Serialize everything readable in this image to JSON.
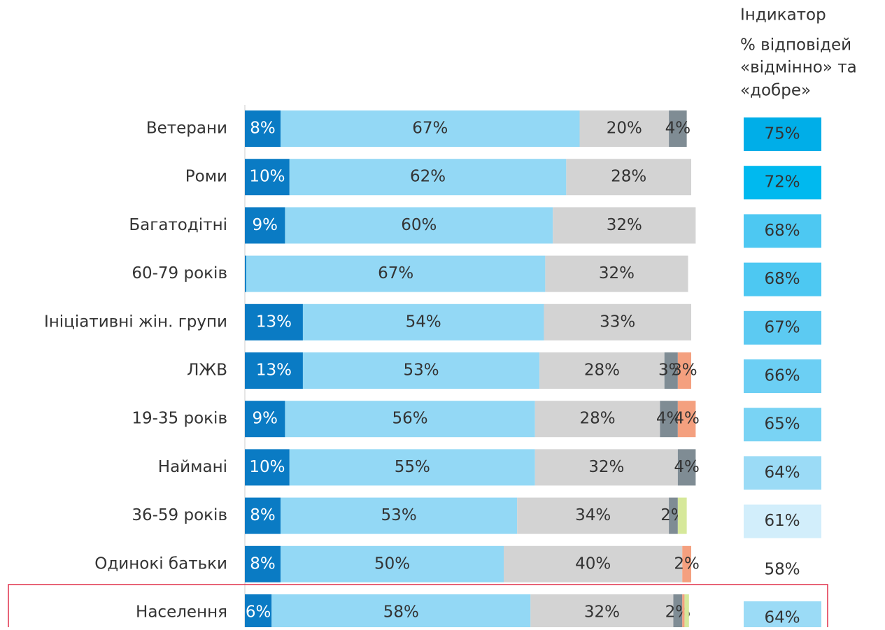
{
  "chart_data": {
    "type": "stacked-barh",
    "categories": [
      "Ветерани",
      "Роми",
      "Багатодітні",
      "60-79 років",
      "Ініціативні жін. групи",
      "ЛЖВ",
      "19-35 років",
      "Наймані",
      "36-59 років",
      "Одинокі батьки",
      "Населення"
    ],
    "xlim": [
      0,
      100
    ],
    "series": [
      {
        "color": "#0a7bc4",
        "text_color": "#ffffff",
        "values": [
          8,
          10,
          9,
          0.3,
          13,
          13,
          9,
          10,
          8,
          8,
          6
        ],
        "value_labels": [
          "8%",
          "10%",
          "9%",
          null,
          "13%",
          "13%",
          "9%",
          "10%",
          "8%",
          "8%",
          "6%"
        ]
      },
      {
        "color": "#93d8f5",
        "text_color": "#333333",
        "values": [
          67,
          62,
          60,
          67,
          54,
          53,
          56,
          55,
          53,
          50,
          58
        ],
        "value_labels": [
          "67%",
          "62%",
          "60%",
          "67%",
          "54%",
          "53%",
          "56%",
          "55%",
          "53%",
          "50%",
          "58%"
        ]
      },
      {
        "color": "#d3d3d3",
        "text_color": "#333333",
        "values": [
          20,
          28,
          32,
          32,
          33,
          28,
          28,
          32,
          34,
          40,
          32
        ],
        "value_labels": [
          "20%",
          "28%",
          "32%",
          "32%",
          "33%",
          "28%",
          "28%",
          "32%",
          "34%",
          "40%",
          "32%"
        ]
      },
      {
        "color": "#7f8c94",
        "text_color": "#333333",
        "values": [
          4,
          null,
          null,
          null,
          null,
          3,
          4,
          4,
          2,
          null,
          2
        ],
        "value_labels": [
          "4%",
          null,
          null,
          null,
          null,
          "3%",
          "4%",
          "4%",
          "2%",
          null,
          "2%"
        ]
      },
      {
        "color": "#f4a07f",
        "text_color": "#333333",
        "values": [
          null,
          null,
          null,
          null,
          null,
          3,
          4,
          null,
          null,
          2,
          0.5
        ],
        "value_labels": [
          null,
          null,
          null,
          null,
          null,
          "3%",
          "4%",
          null,
          null,
          "2%",
          null
        ]
      },
      {
        "color": "#d6e89a",
        "text_color": "#333333",
        "values": [
          null,
          null,
          null,
          null,
          null,
          null,
          null,
          null,
          2,
          null,
          1
        ],
        "value_labels": [
          null,
          null,
          null,
          null,
          null,
          null,
          null,
          null,
          null,
          null,
          null
        ]
      }
    ],
    "indicator": {
      "title": "Індикатор",
      "subtitle_lines": [
        "% відповідей",
        "«відмінно» та",
        "«добре»"
      ],
      "values": [
        75,
        72,
        68,
        68,
        67,
        66,
        65,
        64,
        61,
        58,
        64
      ],
      "value_labels": [
        "75%",
        "72%",
        "68%",
        "68%",
        "67%",
        "66%",
        "65%",
        "64%",
        "61%",
        "58%",
        "64%"
      ],
      "colors": [
        "#00aee8",
        "#00b9ef",
        "#4dc8f2",
        "#4dc8f2",
        "#5ccaf2",
        "#6ccff4",
        "#79d3f4",
        "#9bdbf6",
        "#d2eefb",
        null,
        "#9bdbf6"
      ]
    }
  }
}
